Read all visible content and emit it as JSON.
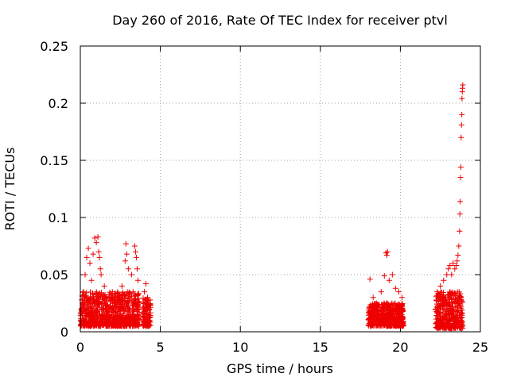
{
  "chart_data": {
    "type": "scatter",
    "title": "Day 260 of 2016, Rate Of TEC Index for receiver ptvl",
    "xlabel": "GPS time / hours",
    "ylabel": "ROTI / TECUs",
    "xlim": [
      0,
      25
    ],
    "ylim": [
      0,
      0.25
    ],
    "xticks": [
      0,
      5,
      10,
      15,
      20,
      25
    ],
    "xtick_labels": [
      "0",
      "5",
      "10",
      "15",
      "20",
      "25"
    ],
    "yticks": [
      0,
      0.05,
      0.1,
      0.15,
      0.2,
      0.25
    ],
    "ytick_labels": [
      "0",
      "0.05",
      "0.1",
      "0.15",
      "0.2",
      "0.25"
    ],
    "grid": true,
    "marker": "+",
    "color": "#ee0000",
    "series": [
      {
        "name": "ROTI",
        "points": [
          [
            0.1,
            0.018
          ],
          [
            0.2,
            0.035
          ],
          [
            0.3,
            0.05
          ],
          [
            0.4,
            0.065
          ],
          [
            0.5,
            0.073
          ],
          [
            0.6,
            0.06
          ],
          [
            0.7,
            0.045
          ],
          [
            0.8,
            0.068
          ],
          [
            0.9,
            0.082
          ],
          [
            1.0,
            0.078
          ],
          [
            1.1,
            0.083
          ],
          [
            1.15,
            0.07
          ],
          [
            1.2,
            0.065
          ],
          [
            1.25,
            0.055
          ],
          [
            1.3,
            0.05
          ],
          [
            1.5,
            0.04
          ],
          [
            1.8,
            0.03
          ],
          [
            2.0,
            0.035
          ],
          [
            2.3,
            0.028
          ],
          [
            2.6,
            0.04
          ],
          [
            2.8,
            0.062
          ],
          [
            2.85,
            0.077
          ],
          [
            2.9,
            0.068
          ],
          [
            3.0,
            0.055
          ],
          [
            3.2,
            0.05
          ],
          [
            3.4,
            0.075
          ],
          [
            3.45,
            0.07
          ],
          [
            3.5,
            0.065
          ],
          [
            3.55,
            0.055
          ],
          [
            3.6,
            0.045
          ],
          [
            4.0,
            0.035
          ],
          [
            4.1,
            0.042
          ],
          [
            4.2,
            0.03
          ],
          [
            4.3,
            0.02
          ],
          [
            18.1,
            0.046
          ],
          [
            18.3,
            0.03
          ],
          [
            18.5,
            0.025
          ],
          [
            18.8,
            0.035
          ],
          [
            19.0,
            0.049
          ],
          [
            19.1,
            0.069
          ],
          [
            19.15,
            0.067
          ],
          [
            19.2,
            0.07
          ],
          [
            19.3,
            0.045
          ],
          [
            19.5,
            0.05
          ],
          [
            19.7,
            0.038
          ],
          [
            19.9,
            0.035
          ],
          [
            20.1,
            0.03
          ],
          [
            22.3,
            0.035
          ],
          [
            22.5,
            0.04
          ],
          [
            22.7,
            0.045
          ],
          [
            22.9,
            0.05
          ],
          [
            23.0,
            0.055
          ],
          [
            23.1,
            0.058
          ],
          [
            23.2,
            0.05
          ],
          [
            23.3,
            0.06
          ],
          [
            23.4,
            0.055
          ],
          [
            23.5,
            0.058
          ],
          [
            23.55,
            0.062
          ],
          [
            23.6,
            0.067
          ],
          [
            23.65,
            0.075
          ],
          [
            23.7,
            0.088
          ],
          [
            23.72,
            0.103
          ],
          [
            23.74,
            0.114
          ],
          [
            23.76,
            0.135
          ],
          [
            23.78,
            0.144
          ],
          [
            23.8,
            0.17
          ],
          [
            23.82,
            0.181
          ],
          [
            23.84,
            0.19
          ],
          [
            23.85,
            0.204
          ],
          [
            23.87,
            0.21
          ],
          [
            23.88,
            0.213
          ],
          [
            23.9,
            0.216
          ]
        ],
        "dense_clusters": [
          {
            "x_range": [
              0.0,
              3.7
            ],
            "y_range": [
              0.005,
              0.035
            ]
          },
          {
            "x_range": [
              3.9,
              4.4
            ],
            "y_range": [
              0.005,
              0.03
            ]
          },
          {
            "x_range": [
              18.0,
              20.2
            ],
            "y_range": [
              0.005,
              0.025
            ]
          },
          {
            "x_range": [
              22.2,
              23.9
            ],
            "y_range": [
              0.003,
              0.035
            ]
          }
        ]
      }
    ]
  }
}
